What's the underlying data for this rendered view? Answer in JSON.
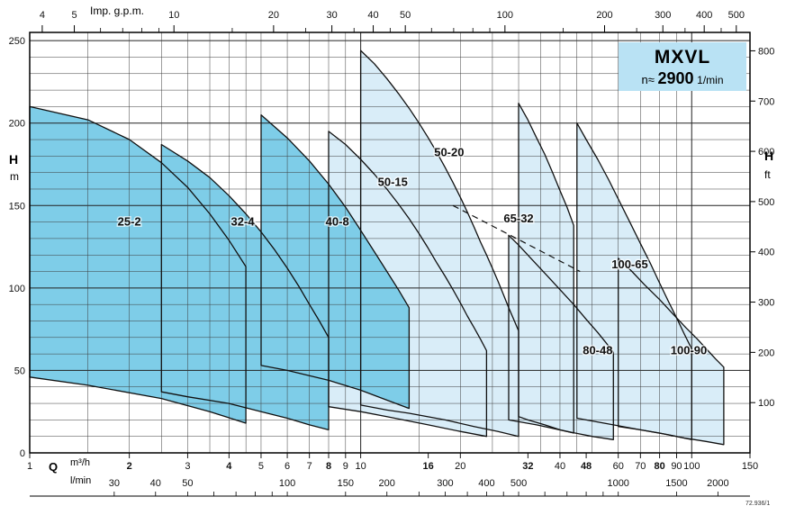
{
  "meta": {
    "doc_number": "72.936/1"
  },
  "title_box": {
    "model": "MXVL",
    "speed_prefix": "n≈",
    "speed_value": "2900",
    "speed_unit": "1/min",
    "bg": "#b9e2f4"
  },
  "axes": {
    "left": {
      "label": "H",
      "unit": "m",
      "ticks": [
        0,
        50,
        100,
        150,
        200,
        250
      ]
    },
    "right": {
      "label": "H",
      "unit": "ft",
      "ticks": [
        100,
        200,
        300,
        400,
        500,
        600,
        700,
        800
      ]
    },
    "top": {
      "label": "Imp. g.p.m.",
      "ticks": [
        4,
        5,
        10,
        20,
        30,
        40,
        50,
        100,
        200,
        300,
        400,
        500
      ],
      "minor_ticks": [
        6,
        7,
        8,
        9,
        15,
        25,
        35,
        45,
        60,
        70,
        80,
        90,
        150,
        250,
        350,
        450
      ]
    },
    "bottom": {
      "label": "Q",
      "unit_m3h": "m³/h",
      "unit_lmin": "l/min",
      "m3h_ticks": [
        {
          "v": 1,
          "bold": false
        },
        {
          "v": 2,
          "bold": true
        },
        {
          "v": 3,
          "bold": false
        },
        {
          "v": 4,
          "bold": true
        },
        {
          "v": 5,
          "bold": false
        },
        {
          "v": 6,
          "bold": false
        },
        {
          "v": 7,
          "bold": false
        },
        {
          "v": 8,
          "bold": true
        },
        {
          "v": 9,
          "bold": false
        },
        {
          "v": 10,
          "bold": false
        },
        {
          "v": 16,
          "bold": true
        },
        {
          "v": 20,
          "bold": false
        },
        {
          "v": 32,
          "bold": true
        },
        {
          "v": 40,
          "bold": false
        },
        {
          "v": 48,
          "bold": true
        },
        {
          "v": 60,
          "bold": false
        },
        {
          "v": 70,
          "bold": false
        },
        {
          "v": 80,
          "bold": true
        },
        {
          "v": 90,
          "bold": false
        },
        {
          "v": 100,
          "bold": false
        },
        {
          "v": 150,
          "bold": false
        }
      ],
      "lmin_ticks": [
        30,
        40,
        50,
        100,
        150,
        200,
        300,
        400,
        500,
        1000,
        1500,
        2000
      ],
      "lmin_minor": [
        30,
        40,
        50,
        60,
        70,
        80,
        90,
        100,
        150,
        200,
        250,
        300,
        350,
        400,
        450,
        500,
        600,
        700,
        800,
        900,
        1000,
        1500,
        2000
      ]
    }
  },
  "chart_data": {
    "type": "area",
    "title": "MXVL n≈ 2900 1/min",
    "x_axis": {
      "scale": "log",
      "unit": "m³/h",
      "min": 1,
      "max": 150
    },
    "y_axis": {
      "scale": "linear",
      "unit": "m",
      "min": 0,
      "max": 255
    },
    "colors": {
      "dark": "#7ecde8",
      "light": "#d9edf8",
      "stroke": "#111111"
    },
    "dashed_line": [
      [
        19,
        150
      ],
      [
        46,
        110
      ]
    ],
    "regions": [
      {
        "name": "25-2",
        "label": "25-2",
        "shade": "dark",
        "label_q": 2,
        "label_h": 140,
        "points": [
          [
            1,
            210
          ],
          [
            1.5,
            202
          ],
          [
            2,
            190
          ],
          [
            2.5,
            176
          ],
          [
            3,
            161
          ],
          [
            3.5,
            145
          ],
          [
            4,
            129
          ],
          [
            4.5,
            113
          ],
          [
            4.5,
            18
          ],
          [
            3.5,
            25
          ],
          [
            2.5,
            33
          ],
          [
            1.5,
            41
          ],
          [
            1,
            46
          ]
        ]
      },
      {
        "name": "32-4",
        "label": "32-4",
        "shade": "dark",
        "label_q": 4.4,
        "label_h": 140,
        "points": [
          [
            2.5,
            187
          ],
          [
            3,
            177
          ],
          [
            3.5,
            167
          ],
          [
            4,
            156
          ],
          [
            4.5,
            145
          ],
          [
            5,
            134
          ],
          [
            5.5,
            123
          ],
          [
            6,
            112
          ],
          [
            6.5,
            101
          ],
          [
            7,
            90
          ],
          [
            7.5,
            80
          ],
          [
            8,
            70
          ],
          [
            8,
            14
          ],
          [
            7,
            17
          ],
          [
            6,
            21
          ],
          [
            5,
            25
          ],
          [
            4,
            30
          ],
          [
            3,
            34
          ],
          [
            2.5,
            37
          ]
        ]
      },
      {
        "name": "40-8",
        "label": "40-8",
        "shade": "dark",
        "label_q": 8.5,
        "label_h": 140,
        "points": [
          [
            5,
            205
          ],
          [
            6,
            191
          ],
          [
            7,
            177
          ],
          [
            8,
            163
          ],
          [
            9,
            149
          ],
          [
            10,
            135
          ],
          [
            11,
            122
          ],
          [
            12,
            110
          ],
          [
            13,
            99
          ],
          [
            14,
            88
          ],
          [
            14,
            27
          ],
          [
            12,
            32
          ],
          [
            10,
            38
          ],
          [
            8,
            44
          ],
          [
            6,
            50
          ],
          [
            5,
            53
          ]
        ]
      },
      {
        "name": "50-15",
        "label": "50-15",
        "shade": "light",
        "label_q": 12.5,
        "label_h": 164,
        "points": [
          [
            8,
            195
          ],
          [
            9,
            187
          ],
          [
            10,
            178
          ],
          [
            11,
            169
          ],
          [
            12,
            160
          ],
          [
            13,
            151
          ],
          [
            14,
            142
          ],
          [
            15,
            133
          ],
          [
            16,
            124
          ],
          [
            17,
            115
          ],
          [
            18,
            107
          ],
          [
            19,
            99
          ],
          [
            20,
            91
          ],
          [
            21,
            83
          ],
          [
            22,
            76
          ],
          [
            23,
            69
          ],
          [
            24,
            62
          ],
          [
            24,
            10
          ],
          [
            20,
            13
          ],
          [
            16,
            17
          ],
          [
            12,
            22
          ],
          [
            10,
            25
          ],
          [
            8,
            28
          ]
        ]
      },
      {
        "name": "50-20",
        "label": "50-20",
        "shade": "light",
        "label_q": 18.5,
        "label_h": 182,
        "points": [
          [
            10,
            244
          ],
          [
            11,
            236
          ],
          [
            12,
            227
          ],
          [
            13,
            218
          ],
          [
            14,
            209
          ],
          [
            15,
            200
          ],
          [
            16,
            191
          ],
          [
            17,
            182
          ],
          [
            18,
            173
          ],
          [
            19,
            164
          ],
          [
            20,
            155
          ],
          [
            21,
            146
          ],
          [
            22,
            137
          ],
          [
            23,
            128
          ],
          [
            24,
            120
          ],
          [
            25,
            112
          ],
          [
            26,
            104
          ],
          [
            27,
            96
          ],
          [
            28,
            88
          ],
          [
            29,
            81
          ],
          [
            30,
            74
          ],
          [
            30,
            10
          ],
          [
            26,
            13
          ],
          [
            22,
            16
          ],
          [
            18,
            20
          ],
          [
            14,
            24
          ],
          [
            12,
            26
          ],
          [
            10,
            29
          ]
        ]
      },
      {
        "name": "65-32",
        "label": "65-32",
        "shade": "light",
        "label_q": 30,
        "label_h": 142,
        "points": [
          [
            30,
            212
          ],
          [
            32,
            202
          ],
          [
            34,
            191
          ],
          [
            36,
            181
          ],
          [
            38,
            170
          ],
          [
            40,
            159
          ],
          [
            42,
            149
          ],
          [
            44,
            138
          ],
          [
            44,
            12
          ],
          [
            40,
            14
          ],
          [
            36,
            17
          ],
          [
            32,
            20
          ],
          [
            30,
            22
          ]
        ]
      },
      {
        "name": "100-65",
        "label": "100-65",
        "shade": "light",
        "label_q": 65,
        "label_h": 114,
        "points": [
          [
            45,
            200
          ],
          [
            48,
            190
          ],
          [
            52,
            178
          ],
          [
            56,
            166
          ],
          [
            60,
            154
          ],
          [
            65,
            140
          ],
          [
            70,
            127
          ],
          [
            75,
            115
          ],
          [
            80,
            103
          ],
          [
            85,
            92
          ],
          [
            90,
            82
          ],
          [
            95,
            72
          ],
          [
            100,
            63
          ],
          [
            100,
            8
          ],
          [
            85,
            11
          ],
          [
            70,
            14
          ],
          [
            58,
            17
          ],
          [
            48,
            20
          ],
          [
            45,
            21
          ]
        ]
      },
      {
        "name": "80-48",
        "label": "80-48",
        "shade": "light",
        "label_q": 52,
        "label_h": 62,
        "points": [
          [
            28,
            132
          ],
          [
            30,
            126
          ],
          [
            33,
            117
          ],
          [
            36,
            109
          ],
          [
            40,
            99
          ],
          [
            44,
            90
          ],
          [
            48,
            81
          ],
          [
            52,
            73
          ],
          [
            55,
            67
          ],
          [
            58,
            61
          ],
          [
            58,
            8
          ],
          [
            50,
            10
          ],
          [
            42,
            13
          ],
          [
            34,
            17
          ],
          [
            28,
            20
          ]
        ]
      },
      {
        "name": "100-90",
        "label": "100-90",
        "shade": "light",
        "label_q": 98,
        "label_h": 62,
        "points": [
          [
            60,
            118
          ],
          [
            66,
            110
          ],
          [
            72,
            102
          ],
          [
            80,
            93
          ],
          [
            88,
            84
          ],
          [
            96,
            76
          ],
          [
            104,
            69
          ],
          [
            112,
            62
          ],
          [
            118,
            57
          ],
          [
            125,
            52
          ],
          [
            125,
            5
          ],
          [
            110,
            7
          ],
          [
            95,
            9
          ],
          [
            80,
            12
          ],
          [
            70,
            14
          ],
          [
            60,
            16
          ]
        ]
      }
    ]
  }
}
